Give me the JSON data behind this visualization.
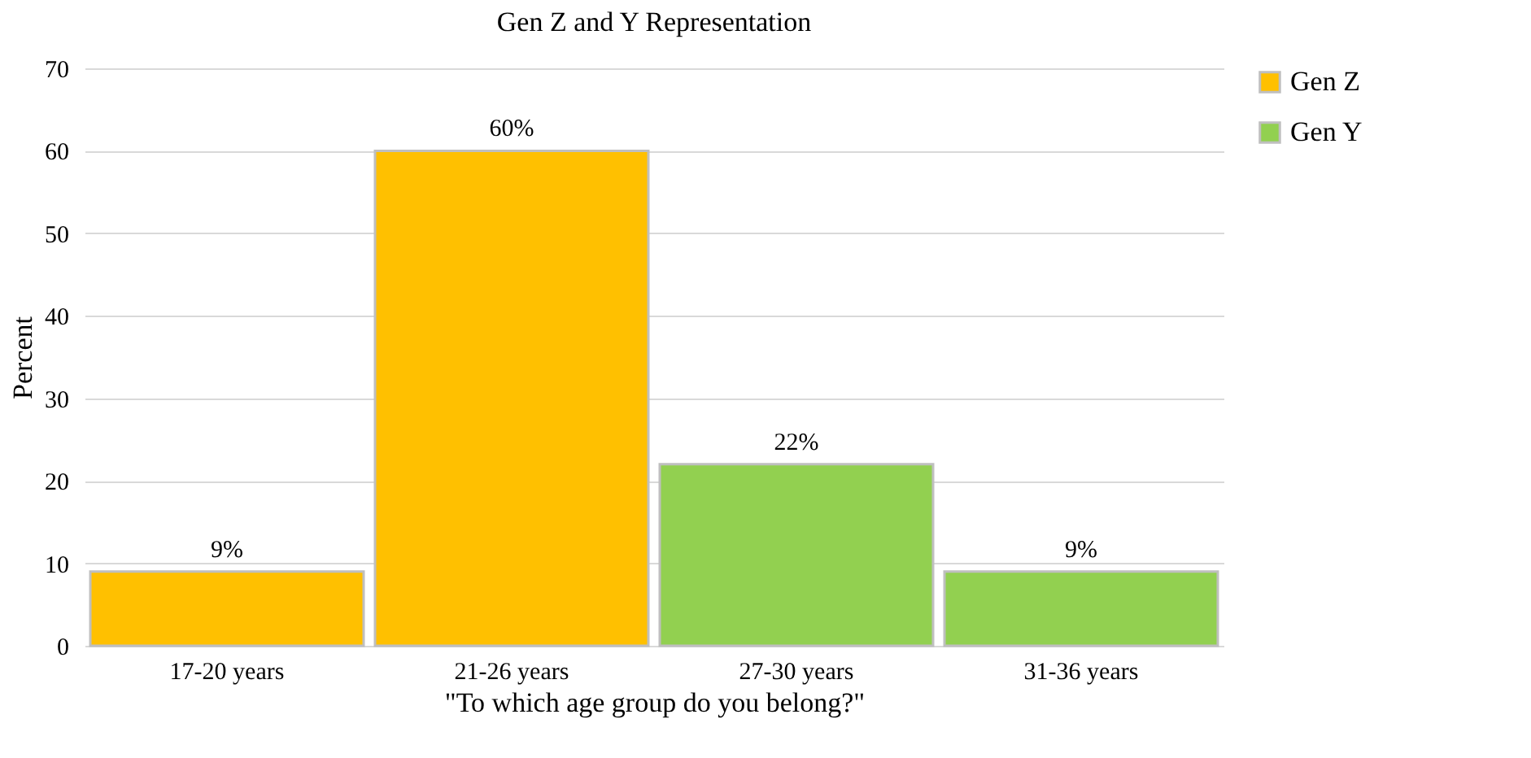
{
  "chart_data": {
    "type": "bar",
    "title": "Gen Z and Y Representation",
    "xlabel": "\"To which age group do you belong?\"",
    "ylabel": "Percent",
    "categories": [
      "17-20 years",
      "21-26 years",
      "27-30 years",
      "31-36 years"
    ],
    "series": [
      {
        "name": "Gen Z",
        "color": "#ffc000",
        "values": [
          9,
          60,
          null,
          null
        ],
        "value_labels": [
          "9%",
          "60%",
          null,
          null
        ]
      },
      {
        "name": "Gen Y",
        "color": "#92d050",
        "values": [
          null,
          null,
          22,
          9
        ],
        "value_labels": [
          null,
          null,
          "22%",
          "9%"
        ]
      }
    ],
    "ylim": [
      0,
      70
    ],
    "yticks": [
      0,
      10,
      20,
      30,
      40,
      50,
      60,
      70
    ],
    "grid": "y",
    "legend": "top right"
  }
}
